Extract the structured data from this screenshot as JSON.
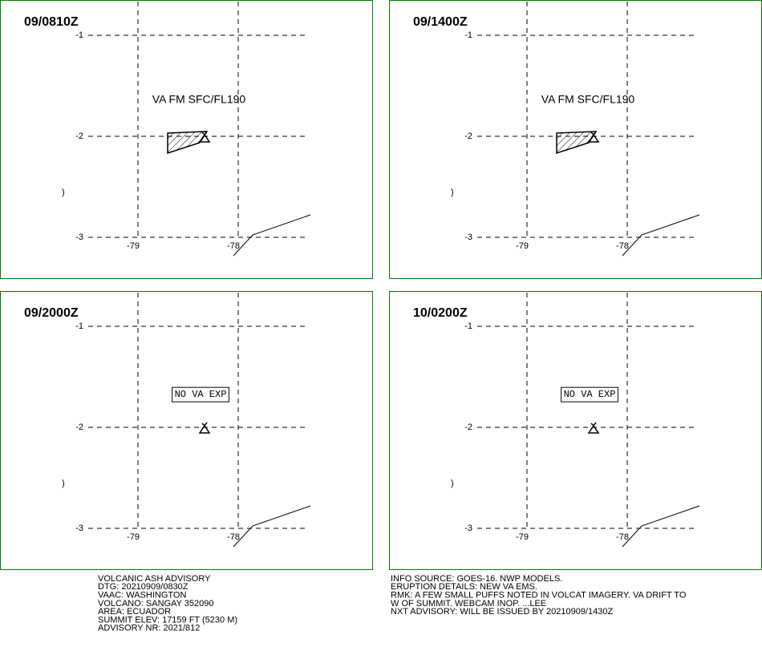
{
  "panels": [
    {
      "time": "09/0810Z",
      "label": "VA FM SFC/FL190",
      "ash": true,
      "boxed": false
    },
    {
      "time": "09/1400Z",
      "label": "VA FM SFC/FL190",
      "ash": true,
      "boxed": false
    },
    {
      "time": "09/2000Z",
      "label": "NO VA EXP",
      "ash": false,
      "boxed": true
    },
    {
      "time": "10/0200Z",
      "label": "NO VA EXP",
      "ash": false,
      "boxed": true
    }
  ],
  "grid": {
    "lat_labels": [
      "-1",
      "-2",
      "-3"
    ],
    "lon_labels": [
      "-79",
      "-78"
    ],
    "coast_mark": ")"
  },
  "footer": {
    "left": [
      "VOLCANIC ASH ADVISORY",
      "DTG: 20210909/0830Z",
      "VAAC: WASHINGTON",
      "VOLCANO: SANGAY 352090",
      "AREA: ECUADOR",
      "SUMMIT ELEV: 17159 FT (5230 M)",
      "ADVISORY NR: 2021/812"
    ],
    "right": [
      "INFO SOURCE: GOES-16. NWP MODELS.",
      "ERUPTION DETAILS: NEW VA EMS.",
      "RMK: A FEW SMALL PUFFS NOTED IN VOLCAT IMAGERY. VA DRIFT TO",
      "W OF SUMMIT. WEBCAM INOP. ...LEE",
      "NXT ADVISORY: WILL BE ISSUED BY 20210909/1430Z"
    ]
  }
}
